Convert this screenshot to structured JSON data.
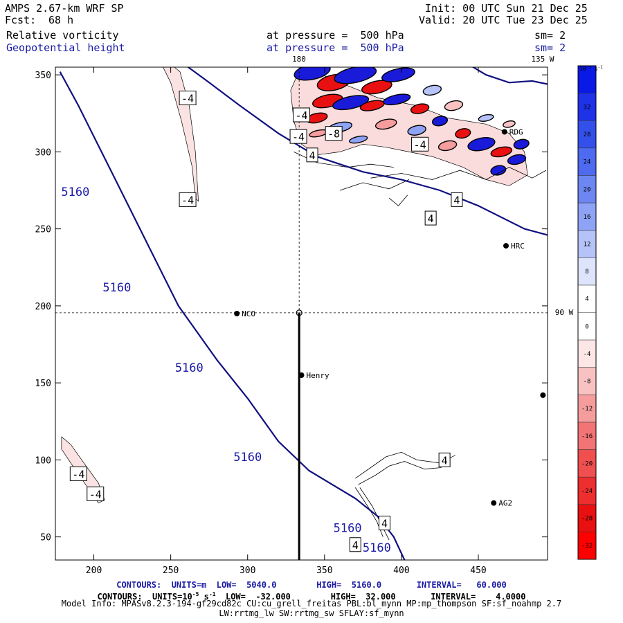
{
  "header": {
    "model": "AMPS 2.67-km WRF SP",
    "init": "Init: 00 UTC Sun 21 Dec 25",
    "fcst_label": "Fcst:",
    "fcst_value": "68 h",
    "valid": "Valid: 20 UTC Tue 23 Dec 25",
    "field1": "Relative vorticity",
    "field1_level": "at pressure =  500 hPa",
    "field1_sm": "sm= 2",
    "field2": "Geopotential height",
    "field2_level": "at pressure =  500 hPa",
    "field2_sm": "sm= 2"
  },
  "chart_data": {
    "type": "contour-map",
    "x_ticks": [
      200,
      250,
      300,
      350,
      400,
      450
    ],
    "y_ticks": [
      50,
      100,
      150,
      200,
      250,
      300,
      350
    ],
    "xlim": [
      175,
      495
    ],
    "ylim": [
      35,
      355
    ],
    "longitude_labels": {
      "top_180": "180",
      "top_135w": "135 W",
      "right_90w": "90 W"
    },
    "meridian_x": 333.5,
    "parallel_y": 195.5,
    "stations": [
      {
        "name": "NCO",
        "x": 293,
        "y": 195
      },
      {
        "name": "Henry",
        "x": 335,
        "y": 155
      },
      {
        "name": "RDG",
        "x": 467,
        "y": 313
      },
      {
        "name": "HRC",
        "x": 468,
        "y": 239
      },
      {
        "name": "AG2",
        "x": 460,
        "y": 72
      },
      {
        "name": "",
        "x": 492,
        "y": 142
      }
    ],
    "height_contour": {
      "value": 5160,
      "label": "5160",
      "units": "m",
      "lines": [
        [
          [
            178,
            352
          ],
          [
            190,
            330
          ],
          [
            200,
            310
          ],
          [
            210,
            290
          ],
          [
            220,
            270
          ],
          [
            235,
            240
          ],
          [
            255,
            200
          ],
          [
            280,
            165
          ],
          [
            300,
            140
          ],
          [
            320,
            112
          ],
          [
            340,
            93
          ],
          [
            370,
            75
          ],
          [
            385,
            63
          ],
          [
            395,
            50
          ],
          [
            402,
            35
          ]
        ],
        [
          [
            260,
            356
          ],
          [
            275,
            345
          ],
          [
            295,
            330
          ],
          [
            320,
            312
          ],
          [
            345,
            297
          ],
          [
            375,
            287
          ],
          [
            400,
            282
          ],
          [
            425,
            275
          ],
          [
            450,
            265
          ],
          [
            480,
            250
          ],
          [
            495,
            246
          ]
        ],
        [
          [
            445,
            356
          ],
          [
            455,
            350
          ],
          [
            470,
            345
          ],
          [
            485,
            346
          ],
          [
            495,
            344
          ]
        ]
      ],
      "labels": [
        {
          "x": 188,
          "y": 274
        },
        {
          "x": 215,
          "y": 212
        },
        {
          "x": 262,
          "y": 160
        },
        {
          "x": 300,
          "y": 102
        },
        {
          "x": 365,
          "y": 56
        },
        {
          "x": 384,
          "y": 43
        }
      ]
    },
    "vorticity_labels": [
      {
        "text": "-4",
        "x": 261,
        "y": 335
      },
      {
        "text": "-4",
        "x": 261,
        "y": 269
      },
      {
        "text": "-4",
        "x": 335,
        "y": 324
      },
      {
        "text": "-4",
        "x": 333,
        "y": 310
      },
      {
        "text": "-8",
        "x": 356,
        "y": 312
      },
      {
        "text": "4",
        "x": 342,
        "y": 298
      },
      {
        "text": "-4",
        "x": 412,
        "y": 305
      },
      {
        "text": "4",
        "x": 419,
        "y": 257
      },
      {
        "text": "4",
        "x": 436,
        "y": 269
      },
      {
        "text": "-4",
        "x": 190,
        "y": 91
      },
      {
        "text": "-4",
        "x": 201,
        "y": 78
      },
      {
        "text": "4",
        "x": 428,
        "y": 100
      },
      {
        "text": "4",
        "x": 389,
        "y": 59
      },
      {
        "text": "4",
        "x": 370,
        "y": 45
      }
    ],
    "colorbar": {
      "units_label": "10",
      "units_exp": "-5",
      "units_rest": " s",
      "units_exp2": "-1",
      "ticks": [
        32,
        28,
        24,
        20,
        16,
        12,
        8,
        4,
        0,
        -4,
        -8,
        -12,
        -16,
        -20,
        -24,
        -28,
        -32
      ],
      "colors": [
        "#0a1ae6",
        "#1e32e8",
        "#3450ea",
        "#4d6af0",
        "#6c87f2",
        "#8ea3f5",
        "#b5c3f8",
        "#dde4fb",
        "#ffffff",
        "#ffffff",
        "#fde6e6",
        "#f9c2c2",
        "#f59d9d",
        "#f27474",
        "#ef4f4f",
        "#ed2e2e",
        "#e81010",
        "#ff0000"
      ]
    },
    "footer": {
      "line1": "CONTOURS:  UNITS=m  LOW=  5040.0        HIGH=  5160.0       INTERVAL=   60.000",
      "line2_a": "CONTOURS:  UNITS=10",
      "line2_exp": "-5",
      "line2_b": " s",
      "line2_exp2": "-1",
      "line2_c": "  LOW=  -32.000        HIGH=  32.000       INTERVAL=    4.0000",
      "line3": "Model Info: MPASv8.2.3-194-gf29cd82c CU:cu_grell_freitas PBL:bl_mynn MP:mp_thompson SF:sf_noahmp 2.7",
      "line4": "LW:rrtmg_lw SW:rrtmg_sw SFLAY:sf_mynn"
    }
  }
}
